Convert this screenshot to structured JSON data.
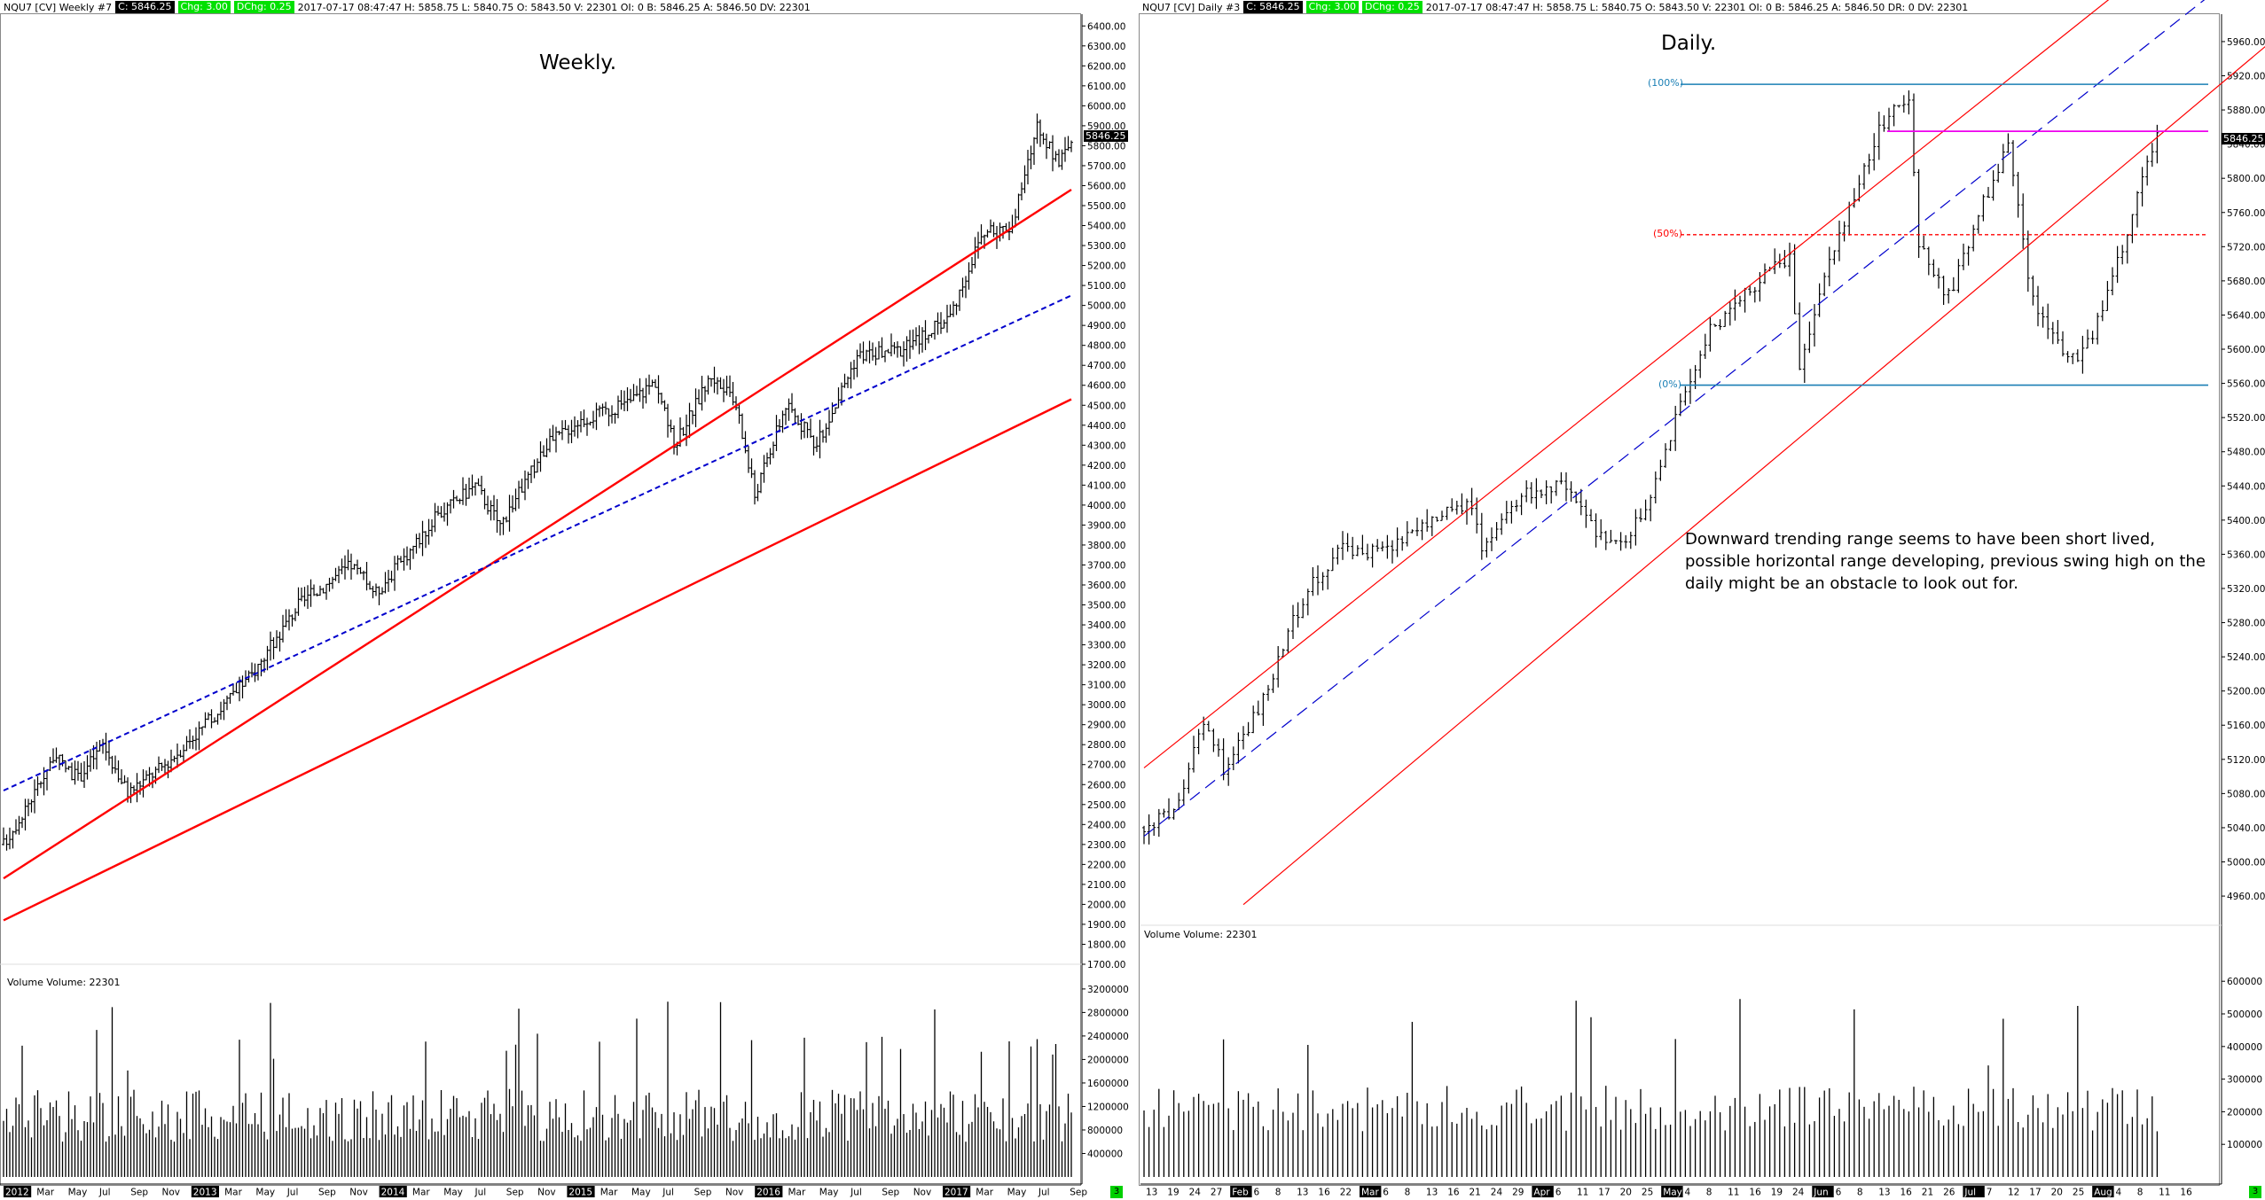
{
  "weekly": {
    "header": {
      "symbol": "NQU7 [CV]  Weekly  #7",
      "c": "C: 5846.25",
      "chg": "Chg: 3.00",
      "dchg": "DChg: 0.25",
      "rest": "2017-07-17 08:47:47 H: 5858.75 L: 5840.75 O: 5843.50 V: 22301 OI: 0 B: 5846.25 A: 5846.50 DV: 22301"
    },
    "title": "Weekly.",
    "volume_label": "Volume  Volume: 22301",
    "last_price": "5846.25",
    "corner": "3"
  },
  "daily": {
    "header": {
      "symbol": "NQU7 [CV]  Daily  #3",
      "c": "C: 5846.25",
      "chg": "Chg: 3.00",
      "dchg": "DChg: 0.25",
      "rest": "2017-07-17 08:47:47 H: 5858.75 L: 5840.75 O: 5843.50 V: 22301 OI: 0 B: 5846.25 A: 5846.50 DR: 0 DV: 22301"
    },
    "title": "Daily.",
    "volume_label": "Volume  Volume: 22301",
    "last_price": "5846.25",
    "fib_100": "(100%)",
    "fib_50": "(50%)",
    "fib_0": "(0%)",
    "annotation": "Downward trending range seems to have been short lived, possible horizontal range developing, previous swing high on the daily might be an obstacle to look out for.",
    "corner": "3"
  },
  "colors": {
    "bars": "#000000",
    "channel": "#ff0000",
    "midline": "#0000cc",
    "fib": "#1a7fb5",
    "fib50": "#ff0000",
    "resistance": "#ee00ee"
  },
  "chart_data": [
    {
      "type": "ohlc",
      "timeframe": "weekly",
      "title": "",
      "ylim": [
        1700,
        6450
      ],
      "y_ticks": [
        6400,
        6300,
        6200,
        6100,
        6000,
        5900,
        5800,
        5700,
        5600,
        5500,
        5400,
        5300,
        5200,
        5100,
        5000,
        4900,
        4800,
        4700,
        4600,
        4500,
        4400,
        4300,
        4200,
        4100,
        4000,
        3900,
        3800,
        3700,
        3600,
        3500,
        3400,
        3300,
        3200,
        3100,
        3000,
        2900,
        2800,
        2700,
        2600,
        2500,
        2400,
        2300,
        2200,
        2100,
        2000,
        1900,
        1800,
        1700
      ],
      "x_tick_labels": [
        "2012",
        "Mar",
        "May",
        "Jul",
        "Sep",
        "Nov",
        "2013",
        "Mar",
        "May",
        "Jul",
        "Sep",
        "Nov",
        "2014",
        "Mar",
        "May",
        "Jul",
        "Sep",
        "Nov",
        "2015",
        "Mar",
        "May",
        "Jul",
        "Sep",
        "Nov",
        "2016",
        "Mar",
        "May",
        "Jul",
        "Sep",
        "Nov",
        "2017",
        "Mar",
        "May",
        "Jul",
        "Sep"
      ],
      "close_path": [
        {
          "t": 0,
          "v": 2300
        },
        {
          "t": 10,
          "v": 2560
        },
        {
          "t": 16,
          "v": 2740
        },
        {
          "t": 24,
          "v": 2630
        },
        {
          "t": 32,
          "v": 2800
        },
        {
          "t": 40,
          "v": 2560
        },
        {
          "t": 52,
          "v": 2700
        },
        {
          "t": 65,
          "v": 2900
        },
        {
          "t": 80,
          "v": 3150
        },
        {
          "t": 95,
          "v": 3500
        },
        {
          "t": 112,
          "v": 3700
        },
        {
          "t": 120,
          "v": 3560
        },
        {
          "t": 140,
          "v": 3950
        },
        {
          "t": 152,
          "v": 4100
        },
        {
          "t": 160,
          "v": 3900
        },
        {
          "t": 175,
          "v": 4300
        },
        {
          "t": 185,
          "v": 4420
        },
        {
          "t": 200,
          "v": 4500
        },
        {
          "t": 210,
          "v": 4620
        },
        {
          "t": 216,
          "v": 4300
        },
        {
          "t": 228,
          "v": 4650
        },
        {
          "t": 236,
          "v": 4500
        },
        {
          "t": 242,
          "v": 4050
        },
        {
          "t": 252,
          "v": 4500
        },
        {
          "t": 262,
          "v": 4300
        },
        {
          "t": 275,
          "v": 4750
        },
        {
          "t": 290,
          "v": 4780
        },
        {
          "t": 305,
          "v": 4950
        },
        {
          "t": 315,
          "v": 5350
        },
        {
          "t": 325,
          "v": 5400
        },
        {
          "t": 333,
          "v": 5900
        },
        {
          "t": 340,
          "v": 5700
        },
        {
          "t": 344,
          "v": 5846
        }
      ],
      "volume_ylim": [
        0,
        3500000
      ],
      "volume_ticks": [
        3200000,
        2800000,
        2400000,
        2000000,
        1600000,
        1200000,
        800000,
        400000
      ],
      "lines": {
        "channel_upper": [
          {
            "t": 0,
            "v": 2130
          },
          {
            "t": 344,
            "v": 5580
          }
        ],
        "channel_mid": [
          {
            "t": 0,
            "v": 2570
          },
          {
            "t": 344,
            "v": 5050
          }
        ],
        "channel_lower": [
          {
            "t": 0,
            "v": 1920
          },
          {
            "t": 344,
            "v": 4530
          }
        ]
      }
    },
    {
      "type": "ohlc",
      "timeframe": "daily",
      "title": "",
      "ylim": [
        4930,
        5990
      ],
      "y_ticks": [
        5960,
        5920,
        5880,
        5840,
        5800,
        5760,
        5720,
        5680,
        5640,
        5600,
        5560,
        5520,
        5480,
        5440,
        5400,
        5360,
        5320,
        5280,
        5240,
        5200,
        5160,
        5120,
        5080,
        5040,
        5000,
        4960
      ],
      "x_tick_labels": [
        "13",
        "19",
        "24",
        "27",
        "Feb",
        "6",
        "8",
        "13",
        "16",
        "22",
        "Mar",
        "6",
        "8",
        "13",
        "16",
        "21",
        "24",
        "29",
        "Apr",
        "6",
        "11",
        "17",
        "20",
        "25",
        "May",
        "4",
        "8",
        "11",
        "16",
        "19",
        "24",
        "Jun",
        "6",
        "8",
        "13",
        "16",
        "21",
        "26",
        "Jul",
        "7",
        "12",
        "17",
        "20",
        "25",
        "Aug",
        "4",
        "8",
        "11",
        "16"
      ],
      "close_path": [
        {
          "t": 0,
          "v": 5040
        },
        {
          "t": 6,
          "v": 5060
        },
        {
          "t": 12,
          "v": 5160
        },
        {
          "t": 16,
          "v": 5110
        },
        {
          "t": 24,
          "v": 5190
        },
        {
          "t": 32,
          "v": 5310
        },
        {
          "t": 40,
          "v": 5370
        },
        {
          "t": 48,
          "v": 5360
        },
        {
          "t": 58,
          "v": 5400
        },
        {
          "t": 66,
          "v": 5420
        },
        {
          "t": 68,
          "v": 5360
        },
        {
          "t": 76,
          "v": 5430
        },
        {
          "t": 84,
          "v": 5440
        },
        {
          "t": 92,
          "v": 5380
        },
        {
          "t": 96,
          "v": 5370
        },
        {
          "t": 102,
          "v": 5420
        },
        {
          "t": 108,
          "v": 5540
        },
        {
          "t": 114,
          "v": 5620
        },
        {
          "t": 124,
          "v": 5680
        },
        {
          "t": 130,
          "v": 5710
        },
        {
          "t": 132,
          "v": 5580
        },
        {
          "t": 138,
          "v": 5700
        },
        {
          "t": 144,
          "v": 5800
        },
        {
          "t": 150,
          "v": 5880
        },
        {
          "t": 154,
          "v": 5890
        },
        {
          "t": 156,
          "v": 5720
        },
        {
          "t": 162,
          "v": 5660
        },
        {
          "t": 168,
          "v": 5760
        },
        {
          "t": 174,
          "v": 5840
        },
        {
          "t": 178,
          "v": 5680
        },
        {
          "t": 182,
          "v": 5620
        },
        {
          "t": 188,
          "v": 5580
        },
        {
          "t": 194,
          "v": 5660
        },
        {
          "t": 200,
          "v": 5780
        },
        {
          "t": 204,
          "v": 5846
        }
      ],
      "volume_ylim": [
        0,
        750000
      ],
      "volume_ticks": [
        600000,
        500000,
        400000,
        300000,
        200000,
        100000
      ],
      "lines": {
        "fib_100": 5910,
        "fib_50": 5734,
        "fib_0": 5558,
        "resistance": 5855,
        "channel_upper": [
          {
            "t": 0,
            "v": 5110
          },
          {
            "t": 229,
            "v": 6170
          }
        ],
        "channel_mid": [
          {
            "t": 0,
            "v": 5030
          },
          {
            "t": 229,
            "v": 6080
          }
        ],
        "channel_lower": [
          {
            "t": 20,
            "v": 4950
          },
          {
            "t": 229,
            "v": 5970
          }
        ]
      }
    }
  ]
}
